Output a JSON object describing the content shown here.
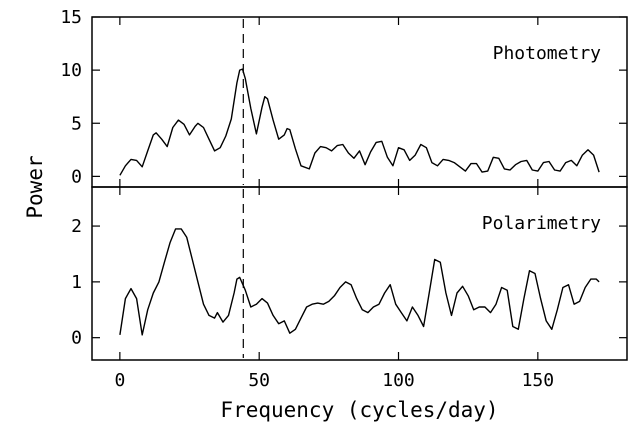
{
  "chart_data": {
    "type": "line",
    "xlabel": "Frequency (cycles/day)",
    "ylabel": "Power",
    "xlim": [
      -10,
      182
    ],
    "xticks": [
      0,
      50,
      100,
      150
    ],
    "grid": false,
    "marker_line": {
      "x": 44.3,
      "style": "dashed"
    },
    "panels": [
      {
        "label": "Photometry",
        "ylim": [
          -1,
          15
        ],
        "yticks": [
          0,
          5,
          10,
          15
        ],
        "series": [
          {
            "x": [
              0,
              2,
              4,
              6,
              8,
              10,
              12,
              13,
              15,
              17,
              19,
              21,
              23,
              25,
              27,
              28,
              30,
              32,
              34,
              36,
              38,
              40,
              42,
              43,
              44,
              45,
              47,
              49,
              51,
              52,
              53,
              55,
              57,
              59,
              60,
              61,
              63,
              65,
              68,
              70,
              72,
              74,
              76,
              78,
              80,
              82,
              84,
              86,
              88,
              90,
              92,
              94,
              96,
              98,
              100,
              102,
              104,
              106,
              108,
              110,
              112,
              114,
              116,
              118,
              120,
              122,
              124,
              126,
              128,
              130,
              132,
              134,
              136,
              138,
              140,
              142,
              144,
              146,
              148,
              150,
              152,
              154,
              156,
              158,
              160,
              162,
              164,
              166,
              168,
              170,
              172
            ],
            "y": [
              0.1,
              1.0,
              1.6,
              1.5,
              0.9,
              2.4,
              3.9,
              4.1,
              3.5,
              2.8,
              4.6,
              5.3,
              4.9,
              3.9,
              4.7,
              5.0,
              4.6,
              3.5,
              2.4,
              2.7,
              3.8,
              5.4,
              8.8,
              10.0,
              10.1,
              9.2,
              6.4,
              4.0,
              6.5,
              7.5,
              7.3,
              5.3,
              3.5,
              3.9,
              4.5,
              4.4,
              2.6,
              1.0,
              0.7,
              2.2,
              2.8,
              2.7,
              2.4,
              2.9,
              3.0,
              2.2,
              1.7,
              2.4,
              1.1,
              2.3,
              3.2,
              3.3,
              1.8,
              1.0,
              2.7,
              2.5,
              1.5,
              2.0,
              3.0,
              2.7,
              1.3,
              1.0,
              1.6,
              1.5,
              1.3,
              0.9,
              0.5,
              1.2,
              1.2,
              0.4,
              0.5,
              1.8,
              1.7,
              0.7,
              0.6,
              1.1,
              1.4,
              1.5,
              0.6,
              0.5,
              1.3,
              1.4,
              0.6,
              0.5,
              1.3,
              1.5,
              1.0,
              2.0,
              2.5,
              2.0,
              0.4
            ]
          }
        ]
      },
      {
        "label": "Polarimetry",
        "ylim": [
          -0.4,
          2.7
        ],
        "yticks": [
          0,
          1,
          2
        ],
        "series": [
          {
            "x": [
              0,
              2,
              4,
              6,
              8,
              10,
              12,
              14,
              16,
              18,
              20,
              22,
              24,
              26,
              28,
              30,
              32,
              34,
              35,
              37,
              39,
              41,
              42,
              43,
              45,
              47,
              49,
              51,
              53,
              55,
              57,
              59,
              61,
              63,
              65,
              67,
              69,
              71,
              73,
              75,
              77,
              79,
              81,
              83,
              85,
              87,
              89,
              91,
              93,
              95,
              97,
              99,
              101,
              103,
              105,
              107,
              109,
              111,
              113,
              115,
              117,
              119,
              121,
              123,
              125,
              127,
              129,
              131,
              133,
              135,
              137,
              139,
              141,
              143,
              145,
              147,
              149,
              151,
              153,
              155,
              157,
              159,
              161,
              163,
              165,
              167,
              169,
              171,
              172
            ],
            "y": [
              0.05,
              0.7,
              0.88,
              0.7,
              0.05,
              0.5,
              0.8,
              1.0,
              1.35,
              1.7,
              1.95,
              1.95,
              1.8,
              1.4,
              1.0,
              0.6,
              0.4,
              0.35,
              0.45,
              0.28,
              0.4,
              0.8,
              1.05,
              1.08,
              0.85,
              0.55,
              0.6,
              0.7,
              0.62,
              0.4,
              0.25,
              0.3,
              0.08,
              0.15,
              0.35,
              0.55,
              0.6,
              0.62,
              0.6,
              0.65,
              0.75,
              0.9,
              1.0,
              0.95,
              0.7,
              0.5,
              0.45,
              0.55,
              0.6,
              0.8,
              0.95,
              0.6,
              0.45,
              0.3,
              0.55,
              0.4,
              0.2,
              0.8,
              1.4,
              1.35,
              0.8,
              0.4,
              0.8,
              0.92,
              0.75,
              0.5,
              0.55,
              0.55,
              0.45,
              0.6,
              0.9,
              0.85,
              0.2,
              0.15,
              0.7,
              1.2,
              1.15,
              0.7,
              0.3,
              0.15,
              0.5,
              0.9,
              0.95,
              0.6,
              0.65,
              0.9,
              1.05,
              1.05,
              1.0
            ]
          }
        ]
      }
    ]
  }
}
